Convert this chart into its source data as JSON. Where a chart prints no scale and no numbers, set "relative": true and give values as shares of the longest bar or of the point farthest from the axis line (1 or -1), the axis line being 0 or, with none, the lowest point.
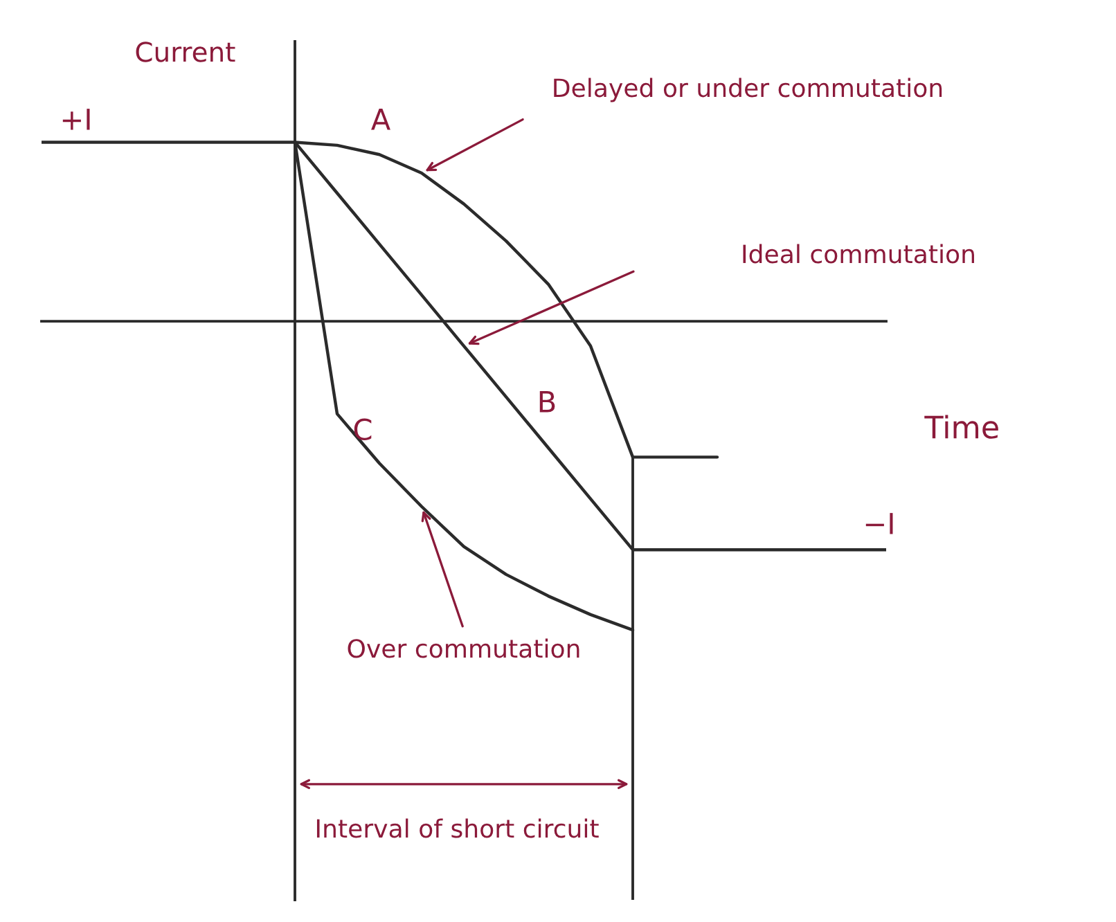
{
  "chart_data": {
    "type": "line",
    "relative": true,
    "xlabel": "Time",
    "ylabel": "Current",
    "categories": [
      null,
      null,
      null,
      null,
      null,
      null,
      null,
      null,
      null,
      null,
      null,
      null,
      null,
      null,
      null,
      null,
      null,
      null,
      null,
      null,
      null
    ],
    "series": [
      {
        "color": "#2b2b2b",
        "values": [
          0.58,
          0.58,
          0.58,
          0.58,
          0.58,
          0.58,
          0.58,
          0.415,
          0.25,
          0.085,
          -0.08,
          -0.245,
          -0.41,
          -0.575,
          -0.74,
          -0.74,
          -0.74,
          -0.74,
          -0.74,
          -0.74,
          -0.74
        ]
      },
      {
        "color": "#2b2b2b",
        "values": [
          null,
          null,
          null,
          null,
          null,
          null,
          0.58,
          0.57,
          0.54,
          0.48,
          0.38,
          0.26,
          0.12,
          -0.08,
          -0.44,
          -0.44,
          -0.44,
          null,
          null,
          null,
          null
        ]
      },
      {
        "color": "#2b2b2b",
        "values": [
          null,
          null,
          null,
          null,
          null,
          null,
          0.58,
          -0.3,
          -0.46,
          -0.6,
          -0.73,
          -0.82,
          -0.89,
          -0.95,
          -1.0,
          null,
          null,
          null,
          null,
          null,
          null
        ]
      }
    ],
    "annotations": [
      "+I",
      "A",
      "B",
      "C",
      "−I",
      "Interval of short circuit",
      "Ideal commutation",
      "Delayed or under commutation",
      "Over commutation"
    ],
    "legend": false
  }
}
